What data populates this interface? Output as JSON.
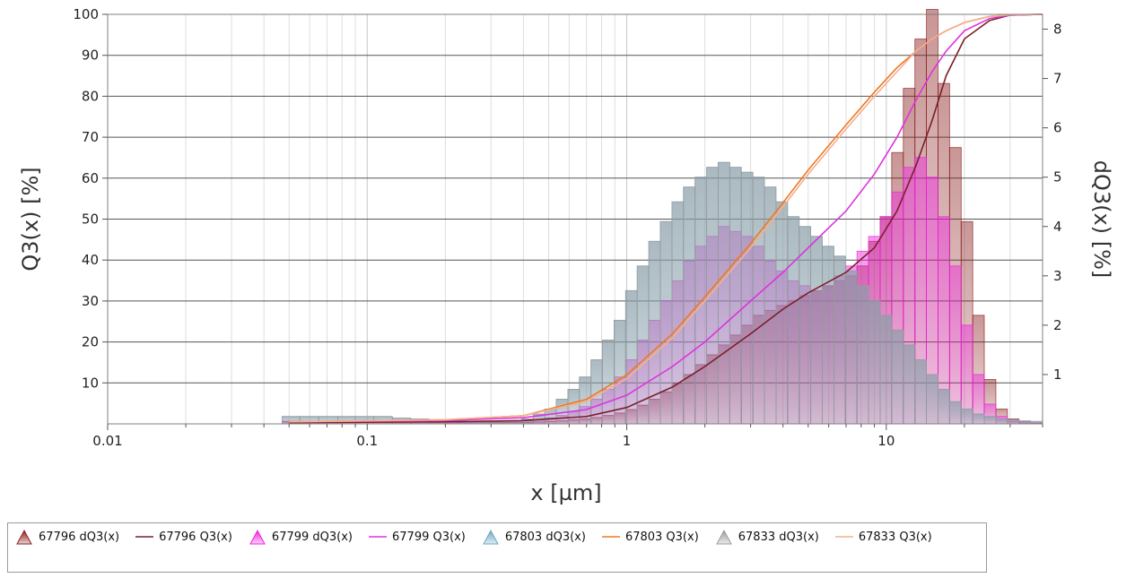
{
  "chart_data": {
    "type": "bar",
    "title": "",
    "xlabel": "x [µm]",
    "ylabel": "Q3(x) [%]",
    "y2label": "dQ3(x) [%]",
    "x_scale": "log",
    "xlim": [
      0.01,
      40
    ],
    "ylim": [
      0,
      100
    ],
    "y2lim": [
      0,
      8.3
    ],
    "x_ticks": [
      0.01,
      0.1,
      1,
      10
    ],
    "x_tick_labels": [
      "0.01",
      "0.1",
      "1",
      "10"
    ],
    "y_ticks": [
      10,
      20,
      30,
      40,
      50,
      60,
      70,
      80,
      90,
      100
    ],
    "y_tick_labels": [
      "10",
      "20",
      "30",
      "40",
      "50",
      "60",
      "70",
      "80",
      "90",
      "100"
    ],
    "y2_ticks": [
      1,
      2,
      3,
      4,
      5,
      6,
      7,
      8
    ],
    "y2_tick_labels": [
      "1",
      "2",
      "3",
      "4",
      "5",
      "6",
      "7",
      "8"
    ],
    "grid": true,
    "legend_position": "bottom",
    "bin_edges": [
      0.047,
      0.055,
      0.065,
      0.077,
      0.09,
      0.106,
      0.125,
      0.147,
      0.173,
      0.204,
      0.24,
      0.283,
      0.334,
      0.393,
      0.436,
      0.483,
      0.535,
      0.593,
      0.657,
      0.728,
      0.806,
      0.894,
      0.99,
      1.097,
      1.216,
      1.347,
      1.493,
      1.654,
      1.833,
      2.031,
      2.25,
      2.494,
      2.763,
      3.062,
      3.393,
      3.759,
      4.166,
      4.616,
      5.115,
      5.668,
      6.281,
      6.96,
      7.712,
      8.545,
      9.469,
      10.49,
      11.63,
      12.89,
      14.28,
      15.82,
      17.53,
      19.43,
      21.53,
      23.85,
      26.43,
      29.29,
      32.45,
      35.96,
      39.85
    ],
    "series": [
      {
        "name": "67796 dQ3(x)",
        "kind": "histogram",
        "axis": "right",
        "color": "#8b1e1e",
        "values": [
          0.05,
          0.05,
          0.05,
          0.05,
          0.05,
          0.05,
          0.04,
          0.04,
          0.03,
          0.03,
          0.03,
          0.03,
          0.03,
          0.03,
          0.04,
          0.05,
          0.06,
          0.08,
          0.1,
          0.13,
          0.17,
          0.22,
          0.29,
          0.38,
          0.5,
          0.65,
          0.82,
          1.0,
          1.2,
          1.4,
          1.6,
          1.8,
          2.0,
          2.2,
          2.3,
          2.4,
          2.5,
          2.6,
          2.7,
          2.8,
          2.9,
          3.0,
          3.2,
          3.7,
          4.2,
          5.5,
          6.8,
          7.8,
          8.4,
          6.9,
          5.6,
          4.1,
          2.2,
          0.9,
          0.3,
          0.1,
          0.05,
          0.02
        ]
      },
      {
        "name": "67796 Q3(x)",
        "kind": "line",
        "axis": "left",
        "color": "#7a1f2a",
        "x": [
          0.05,
          0.2,
          0.4,
          0.7,
          1.0,
          1.5,
          2.0,
          3.0,
          4.0,
          5.0,
          7.0,
          9.0,
          11.0,
          13.0,
          15.0,
          17.0,
          20.0,
          25.0,
          30.0,
          40.0
        ],
        "values": [
          0.3,
          0.5,
          0.8,
          1.8,
          4.0,
          9.0,
          14.0,
          22.0,
          28.0,
          32.0,
          37.0,
          43.0,
          52.0,
          63.0,
          74.0,
          85.0,
          94.0,
          98.5,
          99.8,
          100.0
        ]
      },
      {
        "name": "67799 dQ3(x)",
        "kind": "histogram",
        "axis": "right",
        "color": "#ee22dd",
        "values": [
          0.05,
          0.05,
          0.05,
          0.05,
          0.05,
          0.05,
          0.04,
          0.04,
          0.04,
          0.04,
          0.04,
          0.04,
          0.05,
          0.06,
          0.08,
          0.12,
          0.17,
          0.25,
          0.35,
          0.5,
          0.7,
          0.95,
          1.3,
          1.7,
          2.1,
          2.5,
          2.9,
          3.3,
          3.6,
          3.8,
          4.0,
          3.9,
          3.8,
          3.6,
          3.3,
          3.1,
          2.9,
          2.8,
          2.7,
          2.8,
          3.0,
          3.2,
          3.5,
          3.8,
          4.2,
          4.7,
          5.2,
          5.4,
          5.0,
          4.2,
          3.2,
          2.0,
          1.0,
          0.4,
          0.15,
          0.05,
          0.02,
          0.01
        ]
      },
      {
        "name": "67799 Q3(x)",
        "kind": "line",
        "axis": "left",
        "color": "#dd33dd",
        "x": [
          0.05,
          0.2,
          0.4,
          0.7,
          1.0,
          1.5,
          2.0,
          3.0,
          4.0,
          5.0,
          7.0,
          9.0,
          11.0,
          13.0,
          15.0,
          17.0,
          20.0,
          25.0,
          30.0,
          40.0
        ],
        "values": [
          0.5,
          0.8,
          1.5,
          3.5,
          7.0,
          14.0,
          20.0,
          30.0,
          37.0,
          43.0,
          52.0,
          61.0,
          70.0,
          79.0,
          86.0,
          91.0,
          96.0,
          99.0,
          99.8,
          100.0
        ]
      },
      {
        "name": "67803 dQ3(x)",
        "kind": "histogram",
        "axis": "right",
        "color": "#6aa7c4",
        "values": [
          0.15,
          0.15,
          0.15,
          0.15,
          0.15,
          0.15,
          0.12,
          0.1,
          0.08,
          0.06,
          0.05,
          0.05,
          0.06,
          0.1,
          0.2,
          0.3,
          0.5,
          0.7,
          0.95,
          1.3,
          1.7,
          2.1,
          2.7,
          3.2,
          3.7,
          4.1,
          4.5,
          4.8,
          5.0,
          5.2,
          5.3,
          5.2,
          5.1,
          5.0,
          4.8,
          4.5,
          4.2,
          4.0,
          3.8,
          3.6,
          3.4,
          3.1,
          2.8,
          2.5,
          2.2,
          1.9,
          1.6,
          1.3,
          1.0,
          0.7,
          0.45,
          0.3,
          0.2,
          0.15,
          0.1,
          0.08,
          0.06,
          0.05
        ]
      },
      {
        "name": "67803 Q3(x)",
        "kind": "line",
        "axis": "left",
        "color": "#f07820",
        "x": [
          0.05,
          0.2,
          0.4,
          0.7,
          1.0,
          1.5,
          2.0,
          3.0,
          4.0,
          5.0,
          7.0,
          9.0,
          11.0,
          13.0,
          15.0,
          17.0,
          20.0,
          25.0,
          30.0,
          40.0
        ],
        "values": [
          0.5,
          1.0,
          2.0,
          6.0,
          12.0,
          22.0,
          31.0,
          44.0,
          54.0,
          62.0,
          73.0,
          81.0,
          87.0,
          91.0,
          94.0,
          96.0,
          98.0,
          99.5,
          99.9,
          100.0
        ]
      },
      {
        "name": "67833 dQ3(x)",
        "kind": "histogram",
        "axis": "right",
        "color": "#9a9a9a",
        "values": [
          0.15,
          0.15,
          0.15,
          0.15,
          0.15,
          0.15,
          0.12,
          0.1,
          0.08,
          0.06,
          0.05,
          0.05,
          0.06,
          0.1,
          0.2,
          0.3,
          0.5,
          0.7,
          0.95,
          1.3,
          1.7,
          2.1,
          2.7,
          3.2,
          3.7,
          4.1,
          4.5,
          4.8,
          5.0,
          5.2,
          5.3,
          5.2,
          5.1,
          5.0,
          4.8,
          4.5,
          4.2,
          4.0,
          3.8,
          3.6,
          3.4,
          3.1,
          2.8,
          2.5,
          2.2,
          1.9,
          1.6,
          1.3,
          1.0,
          0.7,
          0.45,
          0.3,
          0.2,
          0.15,
          0.1,
          0.08,
          0.06,
          0.05
        ]
      },
      {
        "name": "67833 Q3(x)",
        "kind": "line",
        "axis": "left",
        "color": "#f2b090",
        "x": [
          0.05,
          0.2,
          0.4,
          0.7,
          1.0,
          1.5,
          2.0,
          3.0,
          4.0,
          5.0,
          7.0,
          9.0,
          11.0,
          13.0,
          15.0,
          17.0,
          20.0,
          25.0,
          30.0,
          40.0
        ],
        "values": [
          0.5,
          1.0,
          2.0,
          5.5,
          11.0,
          21.0,
          30.0,
          43.0,
          53.0,
          61.0,
          72.0,
          80.0,
          86.0,
          91.0,
          94.0,
          96.0,
          98.0,
          99.5,
          99.9,
          100.0
        ]
      }
    ]
  }
}
